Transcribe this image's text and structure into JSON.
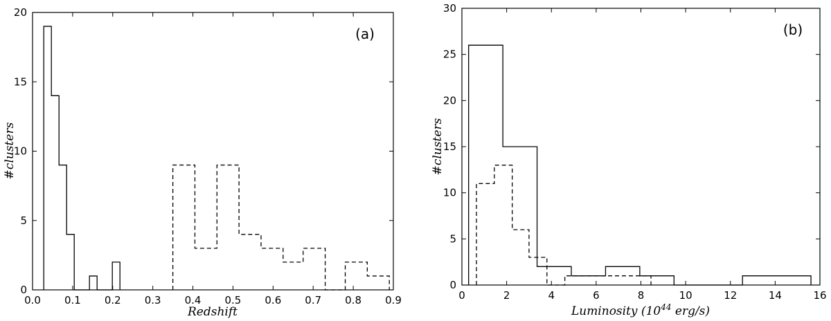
{
  "chart_data": [
    {
      "type": "histogram",
      "panel_label": "(a)",
      "xlabel": "Redshift",
      "ylabel": "#clusters",
      "xlim": [
        0,
        0.9
      ],
      "ylim": [
        0,
        20
      ],
      "xticks": [
        "0.0",
        "0.1",
        "0.2",
        "0.3",
        "0.4",
        "0.5",
        "0.6",
        "0.7",
        "0.8",
        "0.9"
      ],
      "yticks": [
        "0",
        "5",
        "10",
        "15",
        "20"
      ],
      "xtick_values": [
        0,
        0.1,
        0.2,
        0.3,
        0.4,
        0.5,
        0.6,
        0.7,
        0.8,
        0.9
      ],
      "ytick_values": [
        0,
        5,
        10,
        15,
        20
      ],
      "series": [
        {
          "style": "solid",
          "bins": [
            {
              "x0": 0.028,
              "x1": 0.047,
              "count": 19
            },
            {
              "x0": 0.047,
              "x1": 0.066,
              "count": 14
            },
            {
              "x0": 0.066,
              "x1": 0.085,
              "count": 9
            },
            {
              "x0": 0.085,
              "x1": 0.104,
              "count": 4
            },
            {
              "x0": 0.104,
              "x1": 0.142,
              "count": 0
            },
            {
              "x0": 0.142,
              "x1": 0.161,
              "count": 1
            },
            {
              "x0": 0.161,
              "x1": 0.199,
              "count": 0
            },
            {
              "x0": 0.199,
              "x1": 0.218,
              "count": 2
            }
          ]
        },
        {
          "style": "dashed",
          "bins": [
            {
              "x0": 0.35,
              "x1": 0.405,
              "count": 9
            },
            {
              "x0": 0.405,
              "x1": 0.46,
              "count": 3
            },
            {
              "x0": 0.46,
              "x1": 0.515,
              "count": 9
            },
            {
              "x0": 0.515,
              "x1": 0.57,
              "count": 4
            },
            {
              "x0": 0.57,
              "x1": 0.625,
              "count": 3
            },
            {
              "x0": 0.625,
              "x1": 0.675,
              "count": 2
            },
            {
              "x0": 0.675,
              "x1": 0.73,
              "count": 3
            },
            {
              "x0": 0.73,
              "x1": 0.78,
              "count": 0
            },
            {
              "x0": 0.78,
              "x1": 0.835,
              "count": 2
            },
            {
              "x0": 0.835,
              "x1": 0.89,
              "count": 1
            }
          ]
        }
      ]
    },
    {
      "type": "histogram",
      "panel_label": "(b)",
      "xlabel": "Luminosity (10",
      "xlabel_sup": "44",
      "xlabel_suffix": " erg/s)",
      "ylabel": "#clusters",
      "xlim": [
        0,
        16
      ],
      "ylim": [
        0,
        30
      ],
      "xticks": [
        "0",
        "2",
        "4",
        "6",
        "8",
        "10",
        "12",
        "14",
        "16"
      ],
      "yticks": [
        "0",
        "5",
        "10",
        "15",
        "20",
        "25",
        "30"
      ],
      "xtick_values": [
        0,
        2,
        4,
        6,
        8,
        10,
        12,
        14,
        16
      ],
      "ytick_values": [
        0,
        5,
        10,
        15,
        20,
        25,
        30
      ],
      "series": [
        {
          "style": "solid",
          "bins": [
            {
              "x0": 0.3,
              "x1": 1.83,
              "count": 26
            },
            {
              "x0": 1.83,
              "x1": 3.36,
              "count": 15
            },
            {
              "x0": 3.36,
              "x1": 4.89,
              "count": 2
            },
            {
              "x0": 4.89,
              "x1": 6.42,
              "count": 1
            },
            {
              "x0": 6.42,
              "x1": 7.95,
              "count": 2
            },
            {
              "x0": 7.95,
              "x1": 9.48,
              "count": 1
            },
            {
              "x0": 9.48,
              "x1": 12.54,
              "count": 0
            },
            {
              "x0": 12.54,
              "x1": 15.6,
              "count": 1
            }
          ]
        },
        {
          "style": "dashed",
          "bins": [
            {
              "x0": 0.65,
              "x1": 1.45,
              "count": 11
            },
            {
              "x0": 1.45,
              "x1": 2.25,
              "count": 13
            },
            {
              "x0": 2.25,
              "x1": 3.0,
              "count": 6
            },
            {
              "x0": 3.0,
              "x1": 3.8,
              "count": 3
            },
            {
              "x0": 3.8,
              "x1": 4.6,
              "count": 0
            },
            {
              "x0": 4.6,
              "x1": 7.65,
              "count": 1
            },
            {
              "x0": 7.65,
              "x1": 8.45,
              "count": 1
            }
          ]
        }
      ]
    }
  ]
}
